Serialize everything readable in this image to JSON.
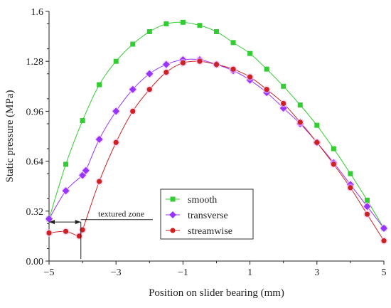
{
  "chart_data": {
    "type": "line",
    "title": "",
    "xlabel": "Position on slider bearing (mm)",
    "ylabel": "Static pressure (MPa)",
    "xlim": [
      -5,
      5
    ],
    "ylim": [
      0,
      1.6
    ],
    "xticks": [
      -5,
      -3,
      -1,
      1,
      3,
      5
    ],
    "xtick_labels": [
      "−5",
      "−3",
      "−1",
      "1",
      "3",
      "5"
    ],
    "yticks": [
      0,
      0.32,
      0.64,
      0.96,
      1.28,
      1.6
    ],
    "ytick_labels": [
      "0.00",
      "0.32",
      "0.64",
      "0.96",
      "1.28",
      "1.6"
    ],
    "grid": false,
    "legend_position": "center-bottom",
    "series": [
      {
        "name": "smooth",
        "color": "#33cc33",
        "marker": "square",
        "x": [
          -5,
          -4.5,
          -4,
          -3.5,
          -3,
          -2.5,
          -2,
          -1.5,
          -1,
          -0.5,
          0,
          0.5,
          1,
          1.5,
          2,
          2.5,
          3,
          3.5,
          4,
          4.5,
          5
        ],
        "y": [
          0.27,
          0.62,
          0.9,
          1.13,
          1.28,
          1.39,
          1.47,
          1.52,
          1.53,
          1.51,
          1.47,
          1.4,
          1.33,
          1.23,
          1.12,
          1.0,
          0.87,
          0.72,
          0.56,
          0.39,
          0.21
        ]
      },
      {
        "name": "transverse",
        "color": "#9933ff",
        "marker": "diamond",
        "x": [
          -5,
          -4.5,
          -4,
          -3.9,
          -3.5,
          -3,
          -2.5,
          -2,
          -1.5,
          -1,
          -0.5,
          0,
          0.5,
          1,
          1.5,
          2,
          2.5,
          3,
          3.5,
          4,
          4.5,
          5
        ],
        "y": [
          0.27,
          0.45,
          0.55,
          0.58,
          0.78,
          0.96,
          1.1,
          1.2,
          1.26,
          1.29,
          1.29,
          1.26,
          1.22,
          1.16,
          1.08,
          0.98,
          0.88,
          0.76,
          0.63,
          0.49,
          0.35,
          0.21
        ]
      },
      {
        "name": "streamwise",
        "color": "#cc2222",
        "marker": "circle",
        "x": [
          -5,
          -4.5,
          -4.1,
          -4,
          -3.5,
          -3,
          -2.5,
          -2,
          -1.5,
          -1,
          -0.5,
          0,
          0.5,
          1,
          1.5,
          2,
          2.5,
          3,
          3.5,
          4,
          4.5,
          5
        ],
        "y": [
          0.18,
          0.19,
          0.16,
          0.2,
          0.51,
          0.76,
          0.96,
          1.1,
          1.21,
          1.27,
          1.28,
          1.26,
          1.23,
          1.18,
          1.1,
          1.01,
          0.89,
          0.76,
          0.62,
          0.47,
          0.3,
          0.13
        ]
      }
    ],
    "annotation": {
      "text": "textured zone",
      "x_start": -5,
      "x_end": -4.05,
      "y": 0.25
    }
  }
}
